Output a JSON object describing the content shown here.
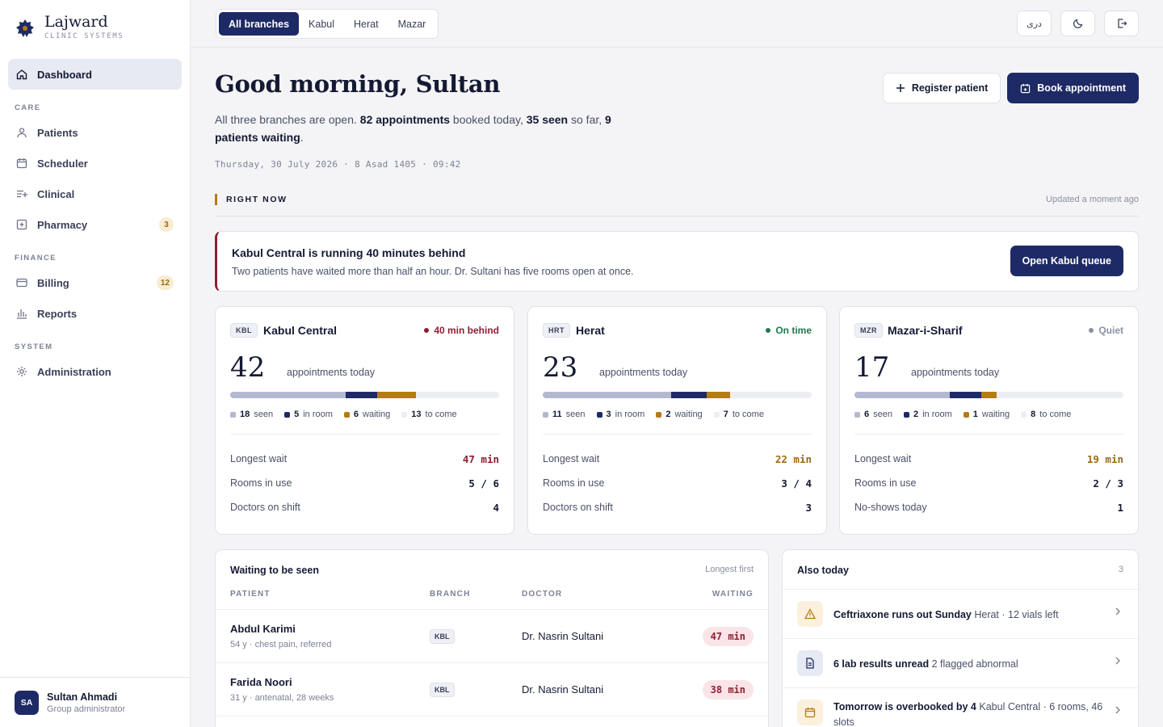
{
  "brand": {
    "name": "Lajward",
    "sub": "CLINIC SYSTEMS"
  },
  "nav": {
    "dashboard": "Dashboard",
    "care_section": "CARE",
    "patients": "Patients",
    "scheduler": "Scheduler",
    "clinical": "Clinical",
    "pharmacy": "Pharmacy",
    "pharmacy_badge": "3",
    "finance_section": "FINANCE",
    "billing": "Billing",
    "billing_badge": "12",
    "reports": "Reports",
    "system_section": "SYSTEM",
    "administration": "Administration"
  },
  "user": {
    "initials": "SA",
    "name": "Sultan Ahmadi",
    "role": "Group administrator"
  },
  "branch_tabs": [
    "All branches",
    "Kabul",
    "Herat",
    "Mazar"
  ],
  "top_actions": {
    "language": "دری"
  },
  "hero": {
    "greeting": "Good morning, Sultan",
    "summary_prefix": "All three branches are open. ",
    "appointments": "82 appointments",
    "booked_text": " booked today, ",
    "seen": "35 seen",
    "sofar_text": " so far, ",
    "waiting": "9 patients waiting",
    "period": ".",
    "datetime": "Thursday, 30 July 2026 · 8 Asad 1405 · 09:42",
    "register_label": "Register patient",
    "book_label": "Book appointment"
  },
  "right_now": {
    "label": "RIGHT NOW",
    "updated": "Updated a moment ago"
  },
  "alert": {
    "title": "Kabul Central is running 40 minutes behind",
    "text": "Two patients have waited more than half an hour. Dr. Sultani has five rooms open at once.",
    "button": "Open Kabul queue"
  },
  "colors": {
    "seen": "#b3b9cf",
    "in_room": "#1e2a66",
    "waiting": "#b57b16",
    "to_come": "#eceef3",
    "behind": "#8e1f33",
    "on_time": "#1e7a4f",
    "quiet": "#8a8fa3"
  },
  "branches": [
    {
      "code": "KBL",
      "name": "Kabul Central",
      "status": "40 min behind",
      "status_color": "#8e1f33",
      "total": "42",
      "total_label": "appointments today",
      "seen": 18,
      "in_room": 5,
      "waiting": 6,
      "to_come": 13,
      "seen_label": "seen",
      "in_room_label": "in room",
      "waiting_label": "waiting",
      "to_come_label": "to come",
      "m1_label": "Longest wait",
      "m1_value": "47 min",
      "m1_color": "#8e1f33",
      "m2_label": "Rooms in use",
      "m2_value": "5 / 6",
      "m3_label": "Doctors on shift",
      "m3_value": "4"
    },
    {
      "code": "HRT",
      "name": "Herat",
      "status": "On time",
      "status_color": "#1e7a4f",
      "total": "23",
      "total_label": "appointments today",
      "seen": 11,
      "in_room": 3,
      "waiting": 2,
      "to_come": 7,
      "seen_label": "seen",
      "in_room_label": "in room",
      "waiting_label": "waiting",
      "to_come_label": "to come",
      "m1_label": "Longest wait",
      "m1_value": "22 min",
      "m1_color": "#9a6a12",
      "m2_label": "Rooms in use",
      "m2_value": "3 / 4",
      "m3_label": "Doctors on shift",
      "m3_value": "3"
    },
    {
      "code": "MZR",
      "name": "Mazar-i-Sharif",
      "status": "Quiet",
      "status_color": "#8a8fa3",
      "total": "17",
      "total_label": "appointments today",
      "seen": 6,
      "in_room": 2,
      "waiting": 1,
      "to_come": 8,
      "seen_label": "seen",
      "in_room_label": "in room",
      "waiting_label": "waiting",
      "to_come_label": "to come",
      "m1_label": "Longest wait",
      "m1_value": "19 min",
      "m1_color": "#9a6a12",
      "m2_label": "Rooms in use",
      "m2_value": "2 / 3",
      "m3_label": "No-shows today",
      "m3_value": "1"
    }
  ],
  "waiting_panel": {
    "title": "Waiting to be seen",
    "meta": "Longest first",
    "columns": [
      "PATIENT",
      "BRANCH",
      "DOCTOR",
      "WAITING"
    ],
    "rows": [
      {
        "name": "Abdul Karimi",
        "sub": "54 y · chest pain, referred",
        "branch": "KBL",
        "doctor": "Dr. Nasrin Sultani",
        "wait": "47 min"
      },
      {
        "name": "Farida Noori",
        "sub": "31 y · antenatal, 28 weeks",
        "branch": "KBL",
        "doctor": "Dr. Nasrin Sultani",
        "wait": "38 min"
      }
    ]
  },
  "also_today": {
    "title": "Also today",
    "count": "3",
    "items": [
      {
        "title": "Ceftriaxone runs out Sunday",
        "detail": "Herat · 12 vials left",
        "icon": "warning-icon"
      },
      {
        "title": "6 lab results unread",
        "detail": "2 flagged abnormal",
        "icon": "document-icon"
      },
      {
        "title": "Tomorrow is overbooked by 4",
        "detail": "Kabul Central · 6 rooms, 46 slots",
        "icon": "calendar-icon"
      }
    ]
  }
}
